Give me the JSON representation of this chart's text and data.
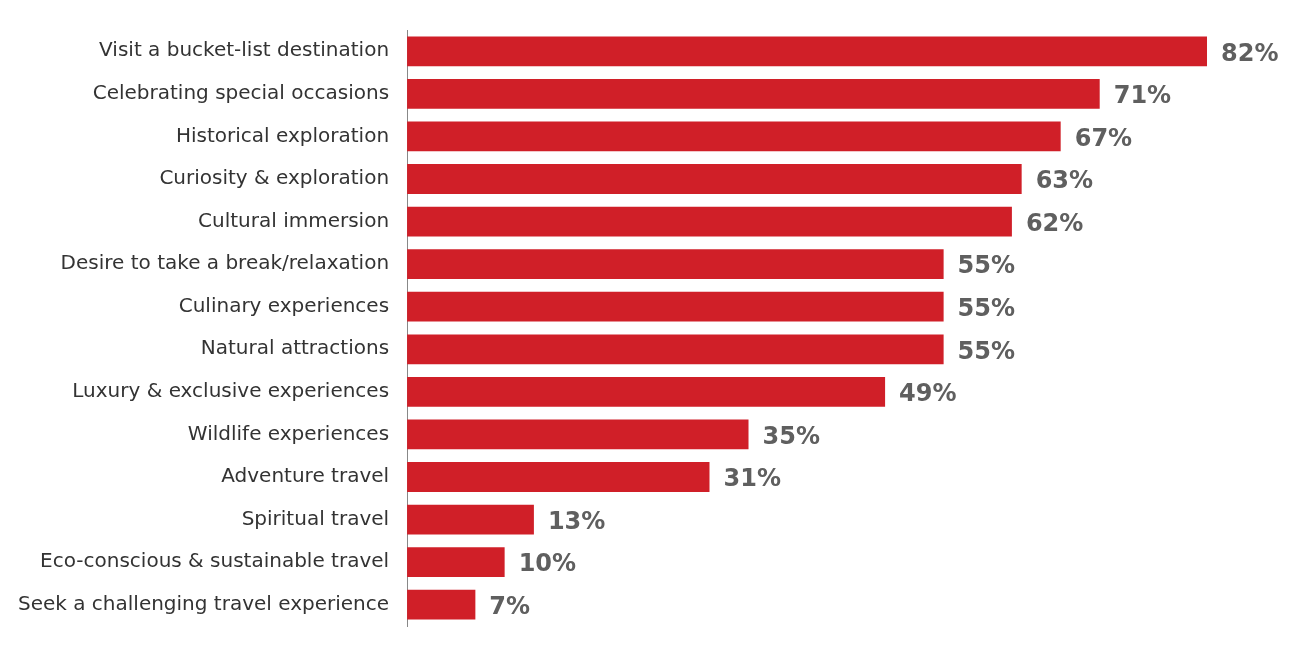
{
  "chart_data": {
    "type": "bar",
    "orientation": "horizontal",
    "tick_labels": "y",
    "categories": [
      "Visit a bucket-list destination",
      "Celebrating special occasions",
      "Historical exploration",
      "Curiosity & exploration",
      "Cultural immersion",
      "Desire to take a break/relaxation",
      "Culinary experiences",
      "Natural attractions",
      "Luxury & exclusive experiences",
      "Wildlife experiences",
      "Adventure travel",
      "Spiritual travel",
      "Eco-conscious & sustainable travel",
      "Seek a challenging travel experience"
    ],
    "values": [
      82,
      71,
      67,
      63,
      62,
      55,
      55,
      55,
      49,
      35,
      31,
      13,
      10,
      7
    ],
    "value_labels": [
      "82%",
      "71%",
      "67%",
      "63%",
      "62%",
      "55%",
      "55%",
      "55%",
      "49%",
      "35%",
      "31%",
      "13%",
      "10%",
      "7%"
    ],
    "color": "#d01f28"
  }
}
